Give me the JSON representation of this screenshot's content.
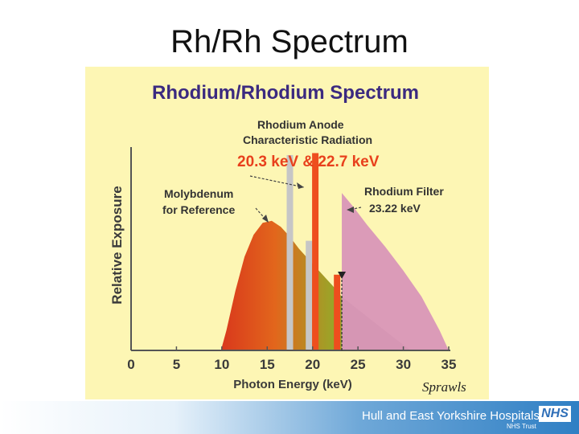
{
  "slide": {
    "title": "Rh/Rh Spectrum"
  },
  "footer": {
    "org_name": "Hull and East Yorkshire Hospitals",
    "org_sub": "NHS Trust",
    "logo_text": "NHS"
  },
  "chart_data": {
    "type": "area",
    "title": "Rhodium/Rhodium Spectrum",
    "xlabel": "Photon Energy (keV)",
    "ylabel": "Relative Exposure",
    "xlim": [
      0,
      35
    ],
    "ylim": [
      0,
      100
    ],
    "xticks": [
      0,
      5,
      10,
      15,
      20,
      25,
      30,
      35
    ],
    "grid": false,
    "signature": "Sprawls",
    "colors": {
      "title": "#3b2a80",
      "annotation": "#333333",
      "energy_text": "#e8401c",
      "rh_bremsstrahlung_left": "#d9381c",
      "rh_bremsstrahlung_right": "#8fae2a",
      "rh_filtered": "#d892b8",
      "rh_lines": "#ee4e1e",
      "mo_lines": "#c6c6c6"
    },
    "series": [
      {
        "name": "Rhodium",
        "type": "area",
        "x": [
          9.9,
          10.5,
          11.5,
          12.5,
          13.5,
          14.5,
          15.5,
          16.5,
          17.5,
          18.5,
          19.5,
          20.5,
          21.5,
          22.5,
          23.2
        ],
        "y": [
          0,
          10,
          30,
          47,
          58,
          64,
          65,
          62,
          57,
          51,
          46,
          41,
          36,
          31,
          27
        ]
      },
      {
        "name": "Rhodium (above filter edge)",
        "type": "area",
        "x": [
          23.22,
          24.5,
          26,
          28,
          30,
          32,
          34,
          35
        ],
        "y": [
          79,
          72,
          63,
          52,
          40,
          27,
          10,
          0
        ]
      },
      {
        "name": "Molybdenum",
        "type": "bar",
        "x": [
          17.5,
          19.6
        ],
        "y": [
          98,
          55
        ]
      },
      {
        "name": "Rhodium characteristic",
        "type": "bar",
        "x": [
          20.3,
          22.7
        ],
        "y": [
          99,
          38
        ]
      }
    ],
    "annotations": [
      {
        "id": "anode",
        "lines": [
          "Rhodium Anode",
          "Characteristic Radiation"
        ]
      },
      {
        "id": "energies",
        "lines": [
          "20.3 keV & 22.7 keV"
        ]
      },
      {
        "id": "mo",
        "lines": [
          "Molybdenum",
          "for Reference"
        ]
      },
      {
        "id": "filter",
        "lines": [
          "Rhodium Filter",
          "23.22  keV"
        ]
      }
    ]
  }
}
